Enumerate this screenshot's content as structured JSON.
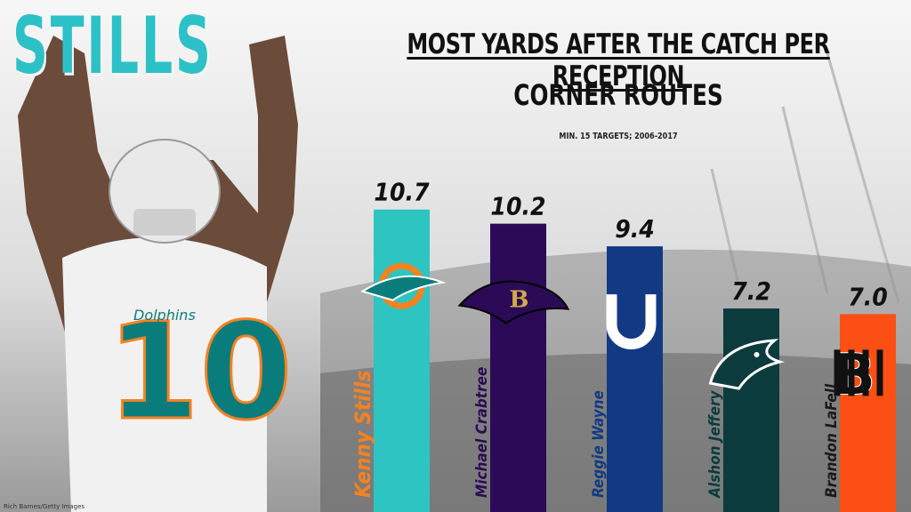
{
  "header": {
    "name_art": "STILLS",
    "photo_credit": "Rich Barnes/Getty Images"
  },
  "chart_data": {
    "type": "bar",
    "title": "MOST YARDS AFTER THE CATCH PER RECEPTION",
    "subtitle": "CORNER ROUTES",
    "note": "MIN. 15 TARGETS; 2006-2017",
    "categories": [
      "Kenny Stills",
      "Michael Crabtree",
      "Reggie Wayne",
      "Alshon Jeffery",
      "Brandon LaFell"
    ],
    "values": [
      10.7,
      10.2,
      9.4,
      7.2,
      7.0
    ],
    "value_labels": [
      "10.7",
      "10.2",
      "9.4",
      "7.2",
      "7.0"
    ],
    "teams": [
      "dolphins",
      "ravens",
      "colts",
      "eagles",
      "bengals"
    ],
    "bar_colors": [
      "#2ec4c1",
      "#2b0b57",
      "#113a83",
      "#0c3b3e",
      "#fb4f14"
    ],
    "label_colors": [
      "#f58220",
      "#2b0b57",
      "#113a83",
      "#0c3b3e",
      "#1a1a1a"
    ],
    "ylim": [
      0,
      12
    ],
    "grid": false,
    "legend": "none"
  },
  "colors": {
    "dolphins_aqua": "#2ec4c1",
    "dolphins_orange": "#f58220",
    "jersey_teal": "#0a7c7c"
  }
}
